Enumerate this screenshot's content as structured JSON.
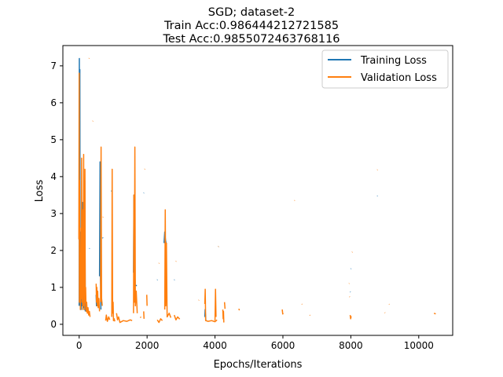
{
  "chart_data": {
    "type": "line",
    "title_lines": [
      "SGD; dataset-2",
      "Train Acc:0.986444212721585",
      "Test Acc:0.9855072463768116"
    ],
    "xlabel": "Epochs/Iterations",
    "ylabel": "Loss",
    "xlim": [
      -480,
      11000
    ],
    "ylim": [
      -0.3,
      7.55
    ],
    "xticks": [
      0,
      2000,
      4000,
      6000,
      8000,
      10000
    ],
    "yticks": [
      0,
      1,
      2,
      3,
      4,
      5,
      6,
      7
    ],
    "grid": false,
    "legend_position": "top-right",
    "series": [
      {
        "name": "Training Loss",
        "color": "#1f77b4",
        "segments": [
          [
            [
              0,
              0.5
            ],
            [
              5,
              7.2
            ],
            [
              12,
              2.2
            ],
            [
              20,
              6.9
            ],
            [
              28,
              0.6
            ],
            [
              40,
              2.5
            ],
            [
              55,
              0.4
            ],
            [
              70,
              1.8
            ],
            [
              85,
              0.5
            ],
            [
              100,
              3.3
            ],
            [
              115,
              0.45
            ],
            [
              130,
              1.2
            ],
            [
              150,
              0.4
            ],
            [
              165,
              3.9
            ],
            [
              180,
              0.35
            ]
          ],
          [
            [
              300,
              2.05
            ],
            [
              305,
              2.06
            ]
          ],
          [
            [
              500,
              0.8
            ],
            [
              510,
              0.5
            ],
            [
              520,
              0.55
            ]
          ],
          [
            [
              600,
              1.3
            ],
            [
              615,
              4.4
            ],
            [
              628,
              1.2
            ],
            [
              640,
              0.4
            ]
          ],
          [
            [
              690,
              2.35
            ],
            [
              700,
              2.33
            ]
          ],
          [
            [
              950,
              3.6
            ],
            [
              958,
              3.62
            ]
          ],
          [
            [
              1600,
              1.4
            ],
            [
              1612,
              3.5
            ],
            [
              1622,
              1.1
            ],
            [
              1635,
              1.5
            ],
            [
              1650,
              1.05
            ],
            [
              1700,
              1.05
            ]
          ],
          [
            [
              1900,
              3.55
            ],
            [
              1906,
              3.56
            ]
          ],
          [
            [
              2500,
              2.2
            ],
            [
              2520,
              2.5
            ],
            [
              2540,
              2.3
            ],
            [
              2560,
              2.2
            ]
          ],
          [
            [
              2300,
              1.2
            ],
            [
              2306,
              1.21
            ]
          ],
          [
            [
              2800,
              1.2
            ],
            [
              2806,
              1.21
            ]
          ],
          [
            [
              4100,
              2.1
            ],
            [
              4106,
              2.11
            ]
          ],
          [
            [
              8000,
              1.5
            ],
            [
              8006,
              1.51
            ]
          ],
          [
            [
              7980,
              0.88
            ],
            [
              7986,
              0.87
            ]
          ],
          [
            [
              8780,
              3.47
            ],
            [
              8786,
              3.48
            ]
          ],
          [
            [
              3700,
              0.2
            ],
            [
              3710,
              0.4
            ],
            [
              3730,
              0.1
            ]
          ]
        ]
      },
      {
        "name": "Validation Loss",
        "color": "#ff7f0e",
        "segments": [
          [
            [
              -10,
              2.3
            ],
            [
              0,
              6.8
            ],
            [
              6,
              0.6
            ],
            [
              12,
              3.9
            ],
            [
              18,
              1.0
            ],
            [
              26,
              2.6
            ],
            [
              35,
              0.4
            ],
            [
              50,
              1.9
            ],
            [
              60,
              0.7
            ],
            [
              72,
              4.5
            ],
            [
              80,
              0.6
            ],
            [
              95,
              2.2
            ],
            [
              105,
              0.4
            ],
            [
              112,
              3.1
            ],
            [
              120,
              0.8
            ],
            [
              132,
              4.6
            ],
            [
              142,
              0.5
            ],
            [
              150,
              1.1
            ],
            [
              160,
              0.4
            ],
            [
              170,
              4.2
            ],
            [
              180,
              0.6
            ],
            [
              190,
              1.0
            ],
            [
              205,
              0.35
            ],
            [
              220,
              0.6
            ],
            [
              240,
              0.3
            ],
            [
              260,
              0.45
            ],
            [
              280,
              0.25
            ],
            [
              300,
              0.35
            ],
            [
              320,
              0.2
            ]
          ],
          [
            [
              290,
              7.2
            ],
            [
              296,
              7.21
            ]
          ],
          [
            [
              400,
              5.5
            ],
            [
              406,
              5.51
            ]
          ],
          [
            [
              500,
              1.1
            ],
            [
              510,
              0.6
            ],
            [
              520,
              1.0
            ],
            [
              530,
              0.5
            ],
            [
              545,
              0.9
            ],
            [
              560,
              0.45
            ],
            [
              580,
              0.7
            ],
            [
              600,
              0.35
            ]
          ],
          [
            [
              630,
              0.6
            ],
            [
              645,
              4.8
            ],
            [
              660,
              0.7
            ],
            [
              680,
              0.5
            ]
          ],
          [
            [
              700,
              2.9
            ],
            [
              706,
              2.91
            ]
          ],
          [
            [
              780,
              0.1
            ],
            [
              800,
              0.25
            ],
            [
              830,
              0.08
            ],
            [
              870,
              0.2
            ],
            [
              900,
              0.12
            ]
          ],
          [
            [
              960,
              0.2
            ],
            [
              972,
              4.2
            ],
            [
              985,
              0.3
            ],
            [
              1000,
              0.6
            ],
            [
              1010,
              0.1
            ],
            [
              1030,
              0.15
            ],
            [
              1050,
              0.08
            ]
          ],
          [
            [
              1100,
              0.3
            ],
            [
              1130,
              0.12
            ],
            [
              1160,
              0.2
            ],
            [
              1200,
              0.05
            ],
            [
              1300,
              0.1
            ],
            [
              1400,
              0.08
            ],
            [
              1500,
              0.12
            ],
            [
              1560,
              0.1
            ]
          ],
          [
            [
              1600,
              0.3
            ],
            [
              1612,
              3.5
            ],
            [
              1625,
              0.6
            ],
            [
              1640,
              4.8
            ],
            [
              1655,
              0.5
            ],
            [
              1680,
              0.9
            ],
            [
              1710,
              0.3
            ]
          ],
          [
            [
              1800,
              0.2
            ],
            [
              1820,
              0.18
            ]
          ],
          [
            [
              1900,
              0.35
            ],
            [
              1910,
              0.15
            ]
          ],
          [
            [
              1930,
              4.2
            ],
            [
              1936,
              4.21
            ]
          ],
          [
            [
              1990,
              0.8
            ],
            [
              2000,
              0.5
            ]
          ],
          [
            [
              2300,
              0.12
            ],
            [
              2350,
              0.05
            ],
            [
              2400,
              0.15
            ],
            [
              2450,
              0.1
            ]
          ],
          [
            [
              2350,
              1.65
            ],
            [
              2356,
              1.66
            ]
          ],
          [
            [
              2520,
              0.4
            ],
            [
              2535,
              3.1
            ],
            [
              2550,
              0.5
            ],
            [
              2570,
              2.2
            ],
            [
              2590,
              0.2
            ],
            [
              2650,
              0.3
            ],
            [
              2700,
              0.18
            ]
          ],
          [
            [
              2850,
              1.7
            ],
            [
              2856,
              1.71
            ]
          ],
          [
            [
              2800,
              0.25
            ],
            [
              2850,
              0.12
            ],
            [
              2900,
              0.2
            ],
            [
              2960,
              0.14
            ]
          ],
          [
            [
              3520,
              0.65
            ],
            [
              3526,
              0.66
            ]
          ],
          [
            [
              3700,
              0.55
            ],
            [
              3712,
              0.95
            ],
            [
              3725,
              0.1
            ],
            [
              3800,
              0.08
            ],
            [
              3900,
              0.1
            ],
            [
              4000,
              0.07
            ],
            [
              4060,
              0.12
            ]
          ],
          [
            [
              4000,
              0.1
            ],
            [
              4015,
              0.95
            ],
            [
              4030,
              0.2
            ]
          ],
          [
            [
              4100,
              2.1
            ],
            [
              4106,
              2.11
            ]
          ],
          [
            [
              4230,
              0.4
            ],
            [
              4240,
              0.15
            ],
            [
              4250,
              0.35
            ],
            [
              4260,
              0.05
            ]
          ],
          [
            [
              4280,
              0.6
            ],
            [
              4295,
              0.42
            ]
          ],
          [
            [
              4700,
              0.42
            ],
            [
              4720,
              0.38
            ]
          ],
          [
            [
              5980,
              0.4
            ],
            [
              5995,
              0.28
            ],
            [
              6010,
              0.3
            ]
          ],
          [
            [
              6340,
              3.35
            ],
            [
              6346,
              3.36
            ]
          ],
          [
            [
              6560,
              0.55
            ],
            [
              6566,
              0.54
            ]
          ],
          [
            [
              6790,
              0.25
            ],
            [
              6800,
              0.24
            ]
          ],
          [
            [
              7950,
              1.1
            ],
            [
              7956,
              1.11
            ]
          ],
          [
            [
              7960,
              0.75
            ],
            [
              7966,
              0.74
            ]
          ],
          [
            [
              7980,
              0.25
            ],
            [
              7995,
              0.15
            ],
            [
              8010,
              0.22
            ]
          ],
          [
            [
              8040,
              1.95
            ],
            [
              8046,
              1.96
            ]
          ],
          [
            [
              8780,
              4.18
            ],
            [
              8786,
              4.19
            ]
          ],
          [
            [
              9000,
              0.32
            ],
            [
              9006,
              0.31
            ]
          ],
          [
            [
              9130,
              0.55
            ],
            [
              9136,
              0.54
            ]
          ],
          [
            [
              10450,
              0.3
            ],
            [
              10500,
              0.28
            ]
          ]
        ]
      }
    ]
  }
}
